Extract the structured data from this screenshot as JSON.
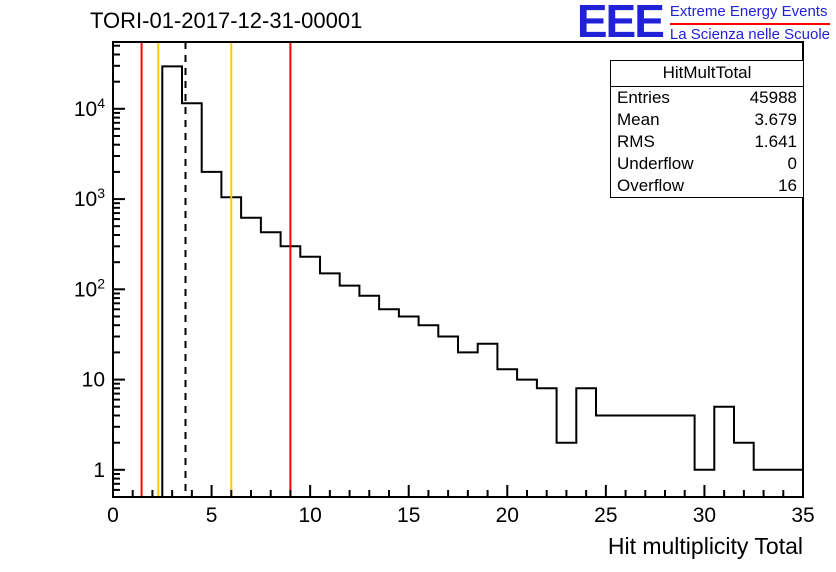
{
  "title": "TORI-01-2017-12-31-00001",
  "logo": {
    "eee": "EEE",
    "line1": "Extreme Energy Events",
    "line2": "La Scienza nelle Scuole",
    "blue": "#2121d8",
    "red": "#ff0000"
  },
  "stats": {
    "title": "HitMultTotal",
    "rows": [
      {
        "label": "Entries",
        "value": "45988"
      },
      {
        "label": "Mean",
        "value": "3.679"
      },
      {
        "label": "RMS",
        "value": "1.641"
      },
      {
        "label": "Underflow",
        "value": "0"
      },
      {
        "label": "Overflow",
        "value": "16"
      }
    ]
  },
  "chart_data": {
    "type": "bar",
    "title": "TORI-01-2017-12-31-00001",
    "xlabel": "Hit multiplicity Total",
    "ylabel": "",
    "xlim": [
      0,
      35
    ],
    "ylim": [
      0.5,
      55000
    ],
    "ylog": true,
    "grid": false,
    "legend": "none",
    "line_color": "#000000",
    "bin_width": 1,
    "bin_centers": [
      0,
      1,
      2,
      3,
      4,
      5,
      6,
      7,
      8,
      9,
      10,
      11,
      12,
      13,
      14,
      15,
      16,
      17,
      18,
      19,
      20,
      21,
      22,
      23,
      24,
      25,
      26,
      27,
      28,
      29,
      30,
      31,
      32,
      33,
      34,
      35
    ],
    "counts": [
      0,
      0,
      0,
      29500,
      11500,
      2000,
      1050,
      620,
      430,
      300,
      230,
      150,
      110,
      85,
      60,
      50,
      40,
      30,
      20,
      25,
      13,
      10,
      8,
      2,
      8,
      4,
      4,
      4,
      4,
      4,
      1,
      5,
      2,
      1,
      1,
      1
    ],
    "x_major_ticks": [
      0,
      5,
      10,
      15,
      20,
      25,
      30,
      35
    ],
    "y_major_ticks": [
      1,
      10,
      100,
      1000,
      10000
    ],
    "vlines": [
      {
        "x": 1.45,
        "color": "#ff0000",
        "style": "solid",
        "name": "red-threshold-low"
      },
      {
        "x": 2.3,
        "color": "#ffcc00",
        "style": "solid",
        "name": "yellow-threshold-low"
      },
      {
        "x": 3.679,
        "color": "#000000",
        "style": "dashed",
        "name": "mean-dashed-line"
      },
      {
        "x": 6,
        "color": "#ffcc00",
        "style": "solid",
        "name": "yellow-threshold-high"
      },
      {
        "x": 9,
        "color": "#ff0000",
        "style": "solid",
        "name": "red-threshold-high"
      }
    ]
  }
}
